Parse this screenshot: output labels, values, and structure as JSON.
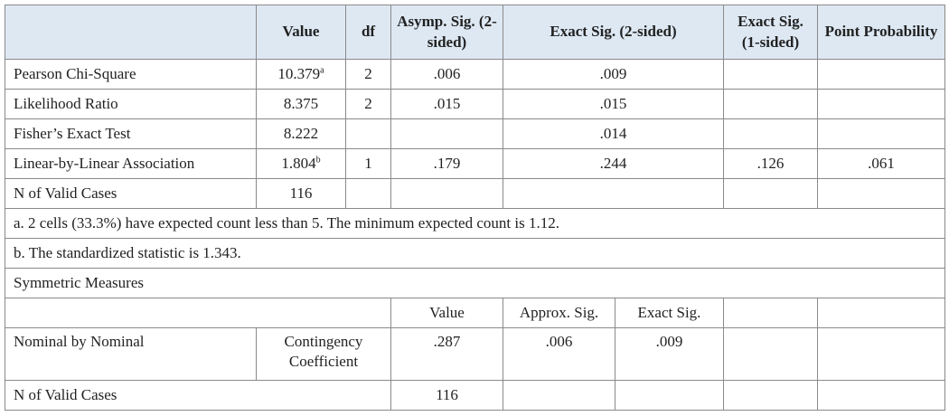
{
  "table": {
    "columns": [
      "Value",
      "df",
      "Asymp. Sig. (2-sided)",
      "Exact Sig. (2-sided)",
      "Exact Sig. (1-sided)",
      "Point Probability"
    ],
    "rows": [
      {
        "label": "Pearson Chi-Square",
        "value": "10.379",
        "superscript": "a",
        "df": "2",
        "asymp": ".006",
        "exact2": ".009"
      },
      {
        "label": "Likelihood Ratio",
        "value": "8.375",
        "df": "2",
        "asymp": ".015",
        "exact2": ".015"
      },
      {
        "label": "Fisher’s Exact Test",
        "value": "8.222",
        "exact2": ".014"
      },
      {
        "label": "Linear-by-Linear Association",
        "value": "1.804",
        "superscript": "b",
        "df": "1",
        "asymp": ".179",
        "exact2": ".244",
        "exact1": ".126",
        "point": ".061"
      },
      {
        "label": "N of Valid Cases",
        "value": "116"
      }
    ],
    "footnotes": [
      "a. 2 cells (33.3%) have expected count less than 5. The minimum expected count is 1.12.",
      "b. The standardized statistic is 1.343."
    ]
  },
  "symmetric": {
    "title": "Symmetric Measures",
    "columns": [
      "Value",
      "Approx. Sig.",
      "Exact Sig."
    ],
    "rows": [
      {
        "label": "Nominal by Nominal",
        "sublabel": "Contingency Coefficient",
        "value": ".287",
        "approx": ".006",
        "exact": ".009"
      },
      {
        "label": "N of Valid Cases",
        "value": "116"
      }
    ]
  }
}
